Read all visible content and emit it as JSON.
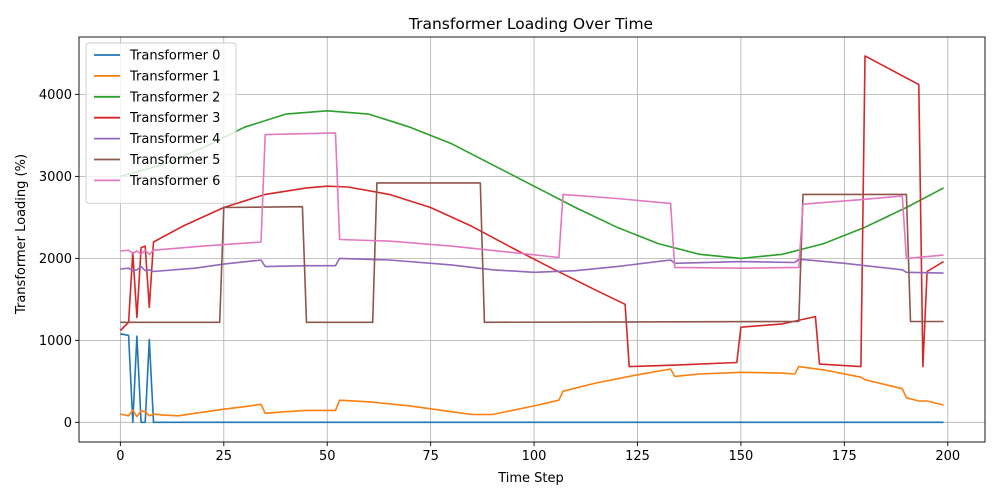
{
  "chart_data": {
    "type": "line",
    "title": "Transformer Loading Over Time",
    "xlabel": "Time Step",
    "ylabel": "Transformer Loading (%)",
    "xlim": [
      -10,
      209
    ],
    "ylim": [
      -240,
      4700
    ],
    "xticks": [
      0,
      25,
      50,
      75,
      100,
      125,
      150,
      175,
      200
    ],
    "yticks": [
      0,
      1000,
      2000,
      3000,
      4000
    ],
    "grid": true,
    "legend_position": "top-left",
    "series": [
      {
        "name": "Transformer 0",
        "color": "#1f77b4",
        "points": [
          [
            0,
            1080
          ],
          [
            2,
            1060
          ],
          [
            3,
            0
          ],
          [
            4,
            1050
          ],
          [
            5,
            0
          ],
          [
            6,
            0
          ],
          [
            7,
            1010
          ],
          [
            8,
            0
          ],
          [
            199,
            0
          ]
        ]
      },
      {
        "name": "Transformer 1",
        "color": "#ff7f0e",
        "points": [
          [
            0,
            100
          ],
          [
            2,
            80
          ],
          [
            3,
            150
          ],
          [
            4,
            70
          ],
          [
            5,
            140
          ],
          [
            6,
            130
          ],
          [
            7,
            80
          ],
          [
            8,
            100
          ],
          [
            10,
            90
          ],
          [
            14,
            80
          ],
          [
            18,
            110
          ],
          [
            25,
            160
          ],
          [
            30,
            190
          ],
          [
            34,
            220
          ],
          [
            35,
            110
          ],
          [
            40,
            130
          ],
          [
            45,
            145
          ],
          [
            52,
            145
          ],
          [
            53,
            270
          ],
          [
            60,
            250
          ],
          [
            70,
            200
          ],
          [
            80,
            130
          ],
          [
            85,
            95
          ],
          [
            90,
            95
          ],
          [
            100,
            200
          ],
          [
            106,
            270
          ],
          [
            107,
            380
          ],
          [
            115,
            480
          ],
          [
            125,
            580
          ],
          [
            133,
            650
          ],
          [
            134,
            560
          ],
          [
            140,
            590
          ],
          [
            150,
            610
          ],
          [
            160,
            600
          ],
          [
            163,
            590
          ],
          [
            164,
            680
          ],
          [
            170,
            640
          ],
          [
            179,
            550
          ],
          [
            180,
            520
          ],
          [
            189,
            410
          ],
          [
            190,
            300
          ],
          [
            193,
            260
          ],
          [
            195,
            260
          ],
          [
            199,
            210
          ]
        ]
      },
      {
        "name": "Transformer 2",
        "color": "#2ca02c",
        "points": [
          [
            0,
            3000
          ],
          [
            10,
            3140
          ],
          [
            20,
            3350
          ],
          [
            30,
            3600
          ],
          [
            40,
            3760
          ],
          [
            50,
            3800
          ],
          [
            60,
            3760
          ],
          [
            70,
            3600
          ],
          [
            80,
            3400
          ],
          [
            90,
            3140
          ],
          [
            100,
            2880
          ],
          [
            110,
            2620
          ],
          [
            120,
            2380
          ],
          [
            130,
            2180
          ],
          [
            140,
            2050
          ],
          [
            150,
            2000
          ],
          [
            160,
            2050
          ],
          [
            170,
            2180
          ],
          [
            180,
            2380
          ],
          [
            190,
            2620
          ],
          [
            199,
            2860
          ]
        ]
      },
      {
        "name": "Transformer 3",
        "color": "#d62728",
        "points": [
          [
            0,
            1120
          ],
          [
            2,
            1220
          ],
          [
            3,
            2070
          ],
          [
            4,
            1280
          ],
          [
            5,
            2130
          ],
          [
            6,
            2150
          ],
          [
            7,
            1400
          ],
          [
            8,
            2200
          ],
          [
            15,
            2390
          ],
          [
            25,
            2620
          ],
          [
            35,
            2780
          ],
          [
            45,
            2860
          ],
          [
            50,
            2880
          ],
          [
            55,
            2870
          ],
          [
            65,
            2780
          ],
          [
            75,
            2620
          ],
          [
            85,
            2390
          ],
          [
            95,
            2120
          ],
          [
            105,
            1860
          ],
          [
            115,
            1610
          ],
          [
            122,
            1440
          ],
          [
            123,
            680
          ],
          [
            135,
            700
          ],
          [
            149,
            730
          ],
          [
            150,
            1160
          ],
          [
            160,
            1200
          ],
          [
            168,
            1290
          ],
          [
            169,
            710
          ],
          [
            179,
            680
          ],
          [
            180,
            4470
          ],
          [
            193,
            4120
          ],
          [
            194,
            680
          ],
          [
            195,
            1840
          ],
          [
            199,
            1960
          ]
        ]
      },
      {
        "name": "Transformer 4",
        "color": "#9467bd",
        "points": [
          [
            0,
            1870
          ],
          [
            2,
            1880
          ],
          [
            3,
            1850
          ],
          [
            4,
            1860
          ],
          [
            5,
            1900
          ],
          [
            6,
            1850
          ],
          [
            7,
            1860
          ],
          [
            8,
            1840
          ],
          [
            18,
            1880
          ],
          [
            25,
            1930
          ],
          [
            34,
            1980
          ],
          [
            35,
            1900
          ],
          [
            45,
            1910
          ],
          [
            52,
            1910
          ],
          [
            53,
            2000
          ],
          [
            65,
            1980
          ],
          [
            80,
            1920
          ],
          [
            90,
            1860
          ],
          [
            100,
            1830
          ],
          [
            110,
            1850
          ],
          [
            120,
            1900
          ],
          [
            133,
            1980
          ],
          [
            134,
            1940
          ],
          [
            150,
            1960
          ],
          [
            163,
            1950
          ],
          [
            164,
            1990
          ],
          [
            175,
            1940
          ],
          [
            189,
            1860
          ],
          [
            190,
            1830
          ],
          [
            199,
            1820
          ]
        ]
      },
      {
        "name": "Transformer 5",
        "color": "#8c564b",
        "points": [
          [
            0,
            1220
          ],
          [
            24,
            1220
          ],
          [
            25,
            2620
          ],
          [
            44,
            2630
          ],
          [
            45,
            1220
          ],
          [
            61,
            1220
          ],
          [
            62,
            2920
          ],
          [
            87,
            2920
          ],
          [
            88,
            1220
          ],
          [
            164,
            1230
          ],
          [
            165,
            2780
          ],
          [
            190,
            2780
          ],
          [
            191,
            1230
          ],
          [
            199,
            1230
          ]
        ]
      },
      {
        "name": "Transformer 6",
        "color": "#e377c2",
        "points": [
          [
            0,
            2090
          ],
          [
            2,
            2100
          ],
          [
            3,
            2060
          ],
          [
            4,
            2090
          ],
          [
            5,
            2050
          ],
          [
            6,
            2100
          ],
          [
            7,
            2050
          ],
          [
            8,
            2100
          ],
          [
            20,
            2150
          ],
          [
            34,
            2200
          ],
          [
            35,
            3510
          ],
          [
            52,
            3530
          ],
          [
            53,
            2230
          ],
          [
            65,
            2210
          ],
          [
            80,
            2150
          ],
          [
            95,
            2070
          ],
          [
            106,
            2010
          ],
          [
            107,
            2780
          ],
          [
            120,
            2730
          ],
          [
            133,
            2670
          ],
          [
            134,
            1890
          ],
          [
            150,
            1880
          ],
          [
            164,
            1890
          ],
          [
            165,
            2660
          ],
          [
            180,
            2720
          ],
          [
            189,
            2760
          ],
          [
            190,
            2000
          ],
          [
            199,
            2040
          ]
        ]
      }
    ]
  }
}
